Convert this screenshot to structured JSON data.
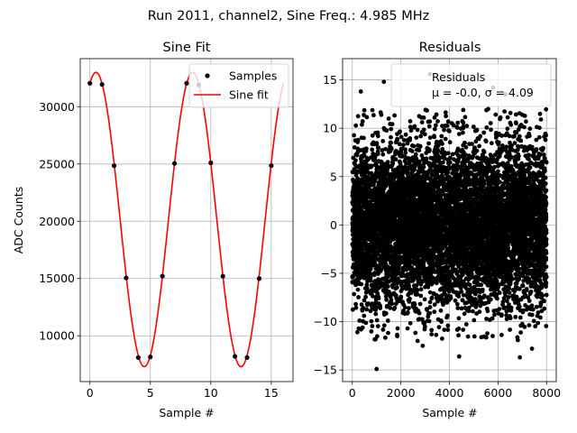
{
  "figure": {
    "suptitle": "Run 2011, channel2, Sine Freq.: 4.985 MHz"
  },
  "chart_data": [
    {
      "type": "line",
      "title": "Sine Fit",
      "xlabel": "Sample #",
      "ylabel": "ADC Counts",
      "xlim": [
        -0.8,
        16.8
      ],
      "ylim": [
        6000,
        34200
      ],
      "xticks": [
        0,
        5,
        10,
        15
      ],
      "yticks": [
        10000,
        15000,
        20000,
        25000,
        30000
      ],
      "grid": true,
      "legend_position": "top-right",
      "fit": {
        "name": "Sine fit",
        "color": "#ff0000",
        "x_range": [
          0,
          16
        ],
        "offset": 20150,
        "amplitude": 12850,
        "period": 8.0,
        "phase_shift": 0.5
      },
      "series": [
        {
          "name": "Samples",
          "color": "#000000",
          "x": [
            0,
            1,
            2,
            3,
            4,
            5,
            6,
            7,
            8,
            9,
            10,
            11,
            12,
            13,
            14,
            15
          ],
          "y": [
            32050,
            31950,
            24850,
            15050,
            8100,
            8150,
            15200,
            25050,
            32050,
            31900,
            25100,
            15200,
            8200,
            8100,
            15000,
            24850
          ]
        }
      ]
    },
    {
      "type": "scatter",
      "title": "Residuals",
      "xlabel": "Sample #",
      "ylabel": "",
      "xlim": [
        -400,
        8400
      ],
      "ylim": [
        -16.2,
        17.2
      ],
      "xticks": [
        0,
        2000,
        4000,
        6000,
        8000
      ],
      "yticks": [
        -15,
        -10,
        -5,
        0,
        5,
        10,
        15
      ],
      "grid": true,
      "legend_position": "top-right",
      "legend_entries": [
        "Residuals",
        "μ = -0.0, σ = 4.09"
      ],
      "n_points": 8000,
      "mean": 0.0,
      "std": 4.09,
      "series": [
        {
          "name": "Residuals",
          "color": "#000000",
          "x_outliers": [
            1000,
            1300,
            350,
            5800,
            3200,
            2900,
            4400,
            6300,
            6900,
            7400
          ],
          "y_outliers": [
            -14.9,
            14.8,
            13.8,
            14.2,
            15.6,
            -12.5,
            -13.6,
            13.5,
            -13.7,
            -12.8
          ]
        }
      ]
    }
  ]
}
